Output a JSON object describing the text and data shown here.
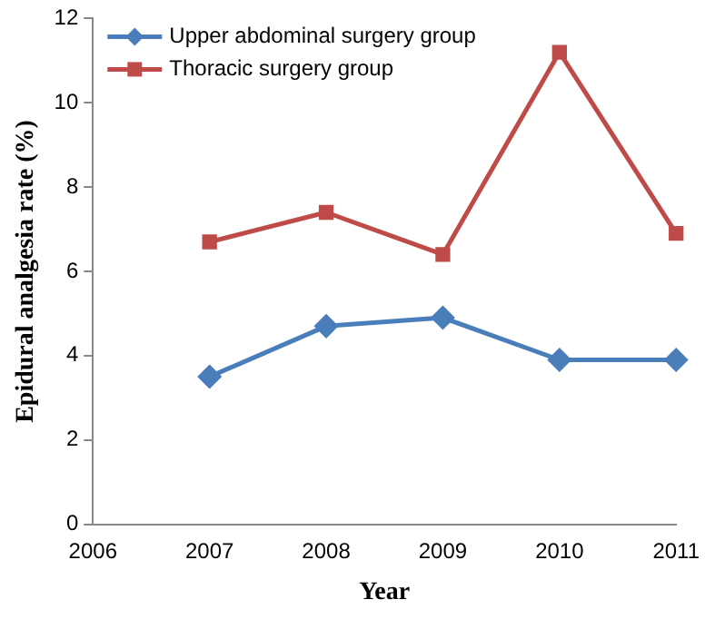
{
  "chart_data": {
    "type": "line",
    "xlabel": "Year",
    "ylabel": "Epidural analgesia rate (%)",
    "x": [
      2007,
      2008,
      2009,
      2010,
      2011
    ],
    "series": [
      {
        "name": "Upper abdominal surgery group",
        "color": "#4a7ebb",
        "marker": "diamond",
        "values": [
          3.5,
          4.7,
          4.9,
          3.9,
          3.9
        ]
      },
      {
        "name": "Thoracic surgery group",
        "color": "#be4b48",
        "marker": "square",
        "values": [
          6.7,
          7.4,
          6.4,
          11.2,
          6.9
        ]
      }
    ],
    "xlim": [
      2006,
      2011
    ],
    "xticks": [
      2006,
      2007,
      2008,
      2009,
      2010,
      2011
    ],
    "ylim": [
      0,
      12
    ],
    "yticks": [
      0,
      2,
      4,
      6,
      8,
      10,
      12
    ],
    "grid": false,
    "legend": "top left",
    "line_style": "solid"
  }
}
